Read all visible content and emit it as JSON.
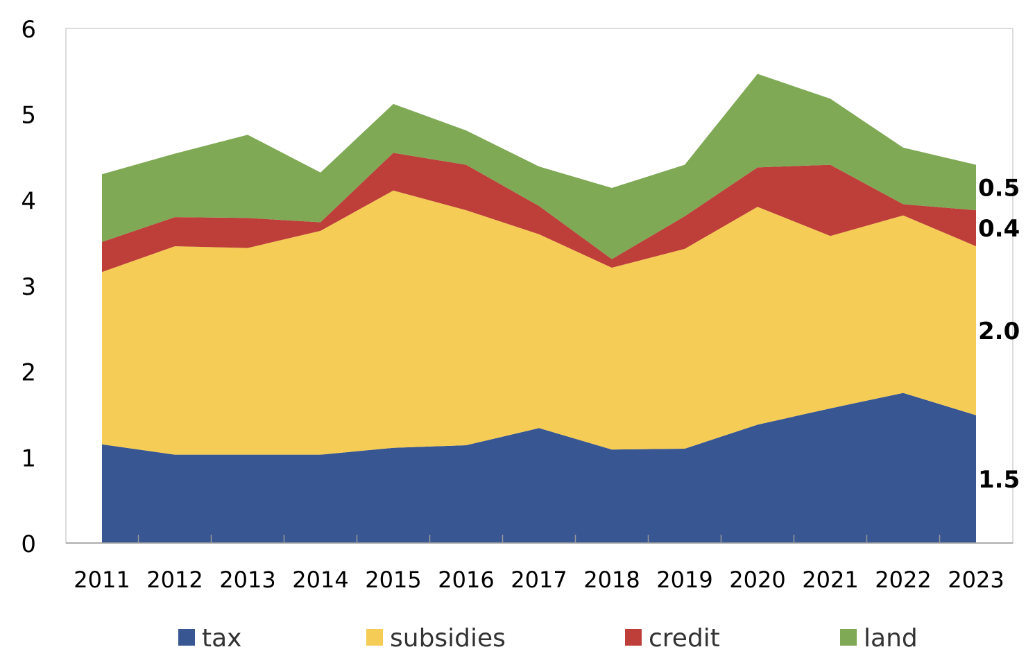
{
  "chart_data": {
    "type": "area",
    "stacked": true,
    "categories": [
      "2011",
      "2012",
      "2013",
      "2014",
      "2015",
      "2016",
      "2017",
      "2018",
      "2019",
      "2020",
      "2021",
      "2022",
      "2023"
    ],
    "series": [
      {
        "name": "tax",
        "color": "#375692",
        "values": [
          1.15,
          1.03,
          1.03,
          1.03,
          1.11,
          1.14,
          1.34,
          1.09,
          1.1,
          1.38,
          1.57,
          1.75,
          1.49
        ]
      },
      {
        "name": "subsidies",
        "color": "#F5CC55",
        "values": [
          2.01,
          2.43,
          2.41,
          2.61,
          3.0,
          2.74,
          2.26,
          2.12,
          2.33,
          2.54,
          2.01,
          2.07,
          1.97
        ]
      },
      {
        "name": "credit",
        "color": "#BE3F3A",
        "values": [
          0.35,
          0.34,
          0.35,
          0.1,
          0.44,
          0.53,
          0.33,
          0.1,
          0.38,
          0.46,
          0.83,
          0.13,
          0.42
        ]
      },
      {
        "name": "land",
        "color": "#7FA955",
        "values": [
          0.79,
          0.74,
          0.97,
          0.58,
          0.57,
          0.4,
          0.46,
          0.83,
          0.6,
          1.09,
          0.77,
          0.66,
          0.53
        ]
      }
    ],
    "end_labels": [
      "1.5",
      "2.0",
      "0.4",
      "0.5"
    ],
    "ylim": [
      0,
      6
    ],
    "yticks": [
      "0",
      "1",
      "2",
      "3",
      "4",
      "5",
      "6"
    ],
    "title": "",
    "xlabel": "",
    "ylabel": "",
    "grid": false,
    "legend": "bottom"
  }
}
